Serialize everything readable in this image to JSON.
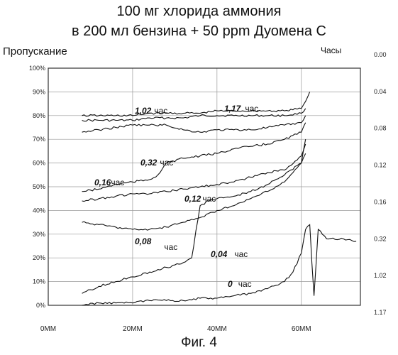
{
  "header": {
    "title_line1": "100 мг хлорида аммония",
    "title_line2": "в 200 мл бензина + 50 ppm Дуомена С",
    "y_axis_title": "Пропускание",
    "right_axis_title": "Часы",
    "figure_caption": "Фиг. 4"
  },
  "chart_data": {
    "type": "line",
    "title": "100 мг хлорида аммония в 200 мл бензина + 50 ppm Дуомена С",
    "ylabel": "Пропускание",
    "xlabel": "",
    "right_label": "Часы",
    "ylim": [
      0,
      100
    ],
    "xlim": [
      0,
      74
    ],
    "grid": true,
    "y_ticks": [
      "0%",
      "10%",
      "20%",
      "30%",
      "40%",
      "50%",
      "60%",
      "70%",
      "80%",
      "90%",
      "100%"
    ],
    "y_tick_values": [
      0,
      10,
      20,
      30,
      40,
      50,
      60,
      70,
      80,
      90,
      100
    ],
    "x_ticks": [
      "0MM",
      "20MM",
      "40MM",
      "60MM"
    ],
    "x_tick_values": [
      0,
      20,
      40,
      60
    ],
    "right_ticks": [
      "0.00",
      "0.04",
      "0.08",
      "0.12",
      "0.16",
      "0.32",
      "1.02",
      "1.17"
    ],
    "series": [
      {
        "name": "1,02 час",
        "x": [
          8,
          12,
          16,
          20,
          24,
          28,
          32,
          36,
          40,
          44,
          48,
          52,
          56,
          60,
          61
        ],
        "values": [
          78,
          78,
          78,
          78,
          79,
          79,
          79,
          80,
          80,
          80,
          80,
          80,
          80,
          81,
          83
        ]
      },
      {
        "name": "1,17 час",
        "x": [
          8,
          12,
          16,
          20,
          24,
          28,
          32,
          36,
          40,
          44,
          48,
          52,
          56,
          60,
          61,
          62
        ],
        "values": [
          80,
          80,
          80,
          80,
          81,
          81,
          81,
          81,
          82,
          82,
          82,
          82,
          82,
          83,
          86,
          90
        ]
      },
      {
        "name": "0,32 час",
        "x": [
          8,
          12,
          16,
          20,
          24,
          28,
          32,
          36,
          40,
          44,
          48,
          52,
          56,
          60,
          61
        ],
        "values": [
          73,
          74,
          75,
          76,
          76,
          76,
          74,
          73,
          74,
          74,
          74,
          75,
          76,
          77,
          80
        ]
      },
      {
        "name": "0,16 час",
        "x": [
          8,
          12,
          16,
          20,
          24,
          26,
          28,
          32,
          36,
          40,
          44,
          48,
          52,
          56,
          60,
          61
        ],
        "values": [
          48,
          49,
          51,
          52,
          53,
          55,
          60,
          62,
          63,
          64,
          66,
          67,
          68,
          70,
          73,
          77
        ]
      },
      {
        "name": "0,12 час",
        "x": [
          8,
          12,
          16,
          20,
          24,
          28,
          32,
          36,
          40,
          44,
          48,
          52,
          56,
          60,
          61
        ],
        "values": [
          44,
          45,
          46,
          47,
          47,
          48,
          49,
          50,
          51,
          52,
          54,
          56,
          57,
          63,
          68
        ]
      },
      {
        "name": "0,08 час",
        "x": [
          8,
          12,
          16,
          20,
          24,
          28,
          32,
          36,
          40,
          44,
          48,
          52,
          56,
          60,
          61
        ],
        "values": [
          35,
          34,
          33,
          32,
          32,
          33,
          35,
          37,
          40,
          42,
          45,
          48,
          52,
          60,
          70
        ]
      },
      {
        "name": "0,04 час",
        "x": [
          8,
          12,
          16,
          20,
          24,
          28,
          32,
          34,
          36,
          38,
          40,
          44,
          48,
          52,
          56,
          60,
          61
        ],
        "values": [
          5,
          8,
          10,
          12,
          14,
          16,
          18,
          20,
          42,
          44,
          45,
          46,
          48,
          51,
          55,
          60,
          64
        ]
      },
      {
        "name": "0 час",
        "x": [
          8,
          12,
          16,
          20,
          24,
          28,
          32,
          36,
          40,
          44,
          48,
          52,
          56,
          58,
          60,
          61,
          62,
          62.5,
          63,
          64,
          66,
          70,
          73
        ],
        "values": [
          0,
          1,
          1,
          1,
          2,
          2,
          2,
          3,
          3,
          4,
          5,
          7,
          10,
          14,
          22,
          32,
          34,
          18,
          4,
          32,
          28,
          28,
          27
        ]
      }
    ]
  },
  "labels": {
    "l_102": "1,02",
    "l_117": "1,17",
    "l_032": "0,32",
    "l_016": "0,16",
    "l_012": "0,12",
    "l_008": "0,08",
    "l_004": "0,04",
    "l_0": "0",
    "unit": "час"
  }
}
